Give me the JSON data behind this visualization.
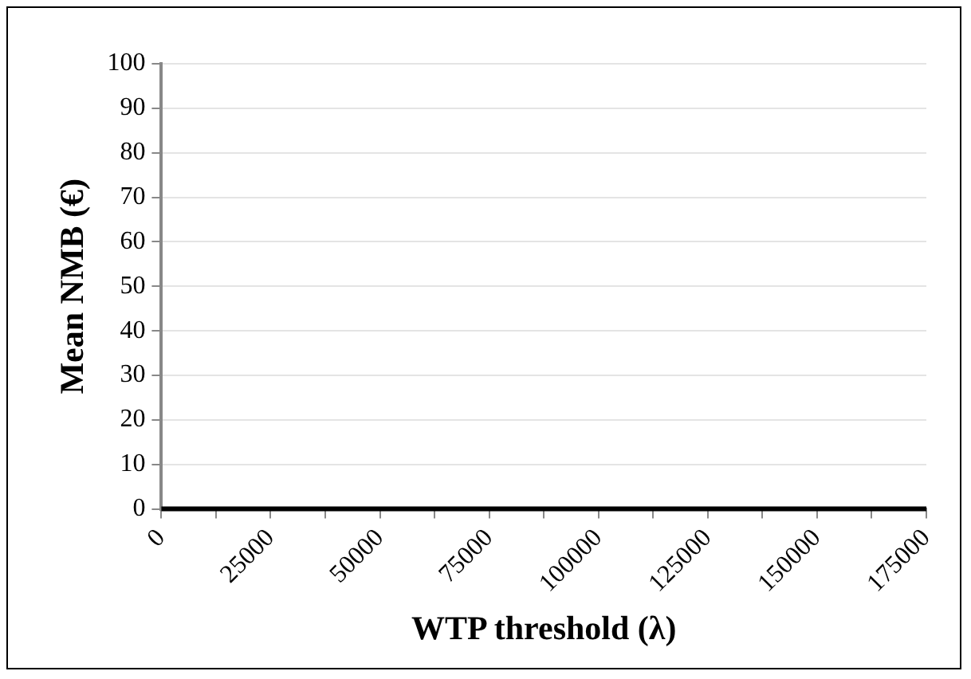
{
  "chart_data": {
    "type": "line",
    "xlabel": "WTP threshold (λ)",
    "ylabel": "Mean NMB (€)",
    "x": [
      0,
      175000
    ],
    "series": [
      {
        "color": "#000000",
        "values": [
          0,
          0
        ]
      }
    ],
    "xlim": [
      0,
      175000
    ],
    "xticks": [
      0,
      {
        "value": 12500,
        "label": null
      },
      25000,
      {
        "value": 37500,
        "label": null
      },
      50000,
      {
        "value": 62500,
        "label": null
      },
      75000,
      {
        "value": 87500,
        "label": null
      },
      100000,
      {
        "value": 112500,
        "label": null
      },
      125000,
      {
        "value": 137500,
        "label": null
      },
      150000,
      {
        "value": 162500,
        "label": null
      },
      175000
    ],
    "ylim": [
      0,
      100
    ],
    "yticks": [
      0,
      10,
      20,
      30,
      40,
      50,
      60,
      70,
      80,
      90,
      100
    ],
    "grid": "y",
    "legend": false,
    "marker": "none",
    "line_style": "solid"
  }
}
